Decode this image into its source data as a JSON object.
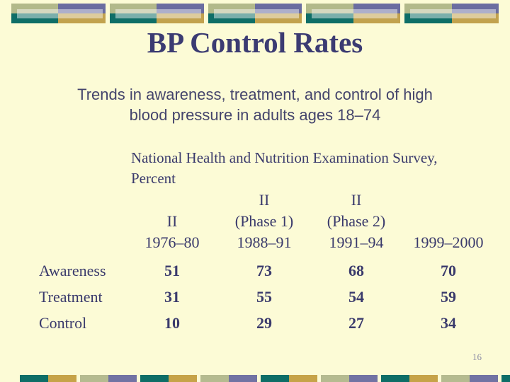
{
  "slide": {
    "title": "BP Control Rates",
    "subtitle_lines": [
      "Trends in awareness, treatment, and control of high",
      "blood pressure in adults ages 18–74"
    ],
    "survey_lines": [
      "National Health and Nutrition Examination Survey,",
      "Percent"
    ],
    "page_number": "16"
  },
  "table": {
    "columns": [
      {
        "lines": [
          "II",
          "1976–80"
        ]
      },
      {
        "lines": [
          "II",
          "(Phase 1)",
          "1988–91"
        ]
      },
      {
        "lines": [
          "II",
          "(Phase 2)",
          "1991–94"
        ]
      },
      {
        "lines": [
          "1999–2000"
        ]
      }
    ],
    "rows": [
      {
        "label": "Awareness",
        "values": [
          "51",
          "73",
          "68",
          "70"
        ]
      },
      {
        "label": "Treatment",
        "values": [
          "31",
          "55",
          "54",
          "59"
        ]
      },
      {
        "label": "Control",
        "values": [
          "10",
          "29",
          "27",
          "34"
        ]
      }
    ]
  },
  "chart_data": {
    "type": "table",
    "title": "Trends in awareness, treatment, and control of high blood pressure in adults ages 18–74",
    "subtitle": "National Health and Nutrition Examination Survey, Percent",
    "columns": [
      "II 1976–80",
      "II (Phase 1) 1988–91",
      "II (Phase 2) 1991–94",
      "1999–2000"
    ],
    "rows": [
      {
        "label": "Awareness",
        "values": [
          51,
          73,
          68,
          70
        ]
      },
      {
        "label": "Treatment",
        "values": [
          31,
          55,
          54,
          59
        ]
      },
      {
        "label": "Control",
        "values": [
          10,
          29,
          27,
          34
        ]
      }
    ]
  },
  "colors": {
    "background": "#FCFBD6",
    "title_text": "#3B3B72",
    "body_text": "#3A3A6C",
    "teal": "#0E6E67",
    "sage": "#B2B98A",
    "slate_purple": "#6A6DA0",
    "gold": "#C2A24E",
    "page_number_text": "#8A8AA4"
  }
}
